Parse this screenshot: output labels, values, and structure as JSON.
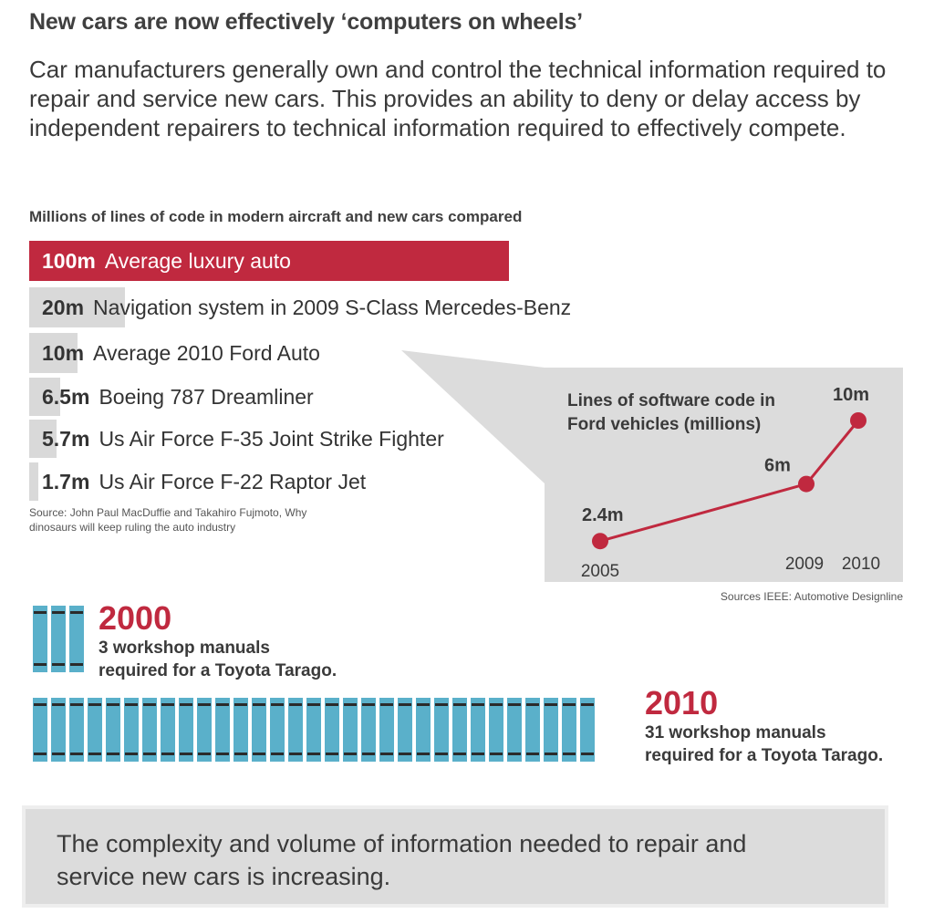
{
  "headline": "New cars are now effectively ‘computers on wheels’",
  "intro": "Car manufacturers generally own and control the technical information required to repair and service new cars. This provides an ability to deny or delay access by independent repairers to technical information required to effectively compete.",
  "chart_data": [
    {
      "type": "bar",
      "orientation": "horizontal",
      "title": "Millions of lines of code in modern aircraft and new cars compared",
      "categories": [
        "Average luxury auto",
        "Navigation system in 2009 S-Class Mercedes-Benz",
        "Average 2010 Ford Auto",
        "Boeing 787 Dreamliner",
        "Us Air Force F-35 Joint Strike Fighter",
        "Us Air Force F-22 Raptor Jet"
      ],
      "values": [
        100,
        20,
        10,
        6.5,
        5.7,
        1.7
      ],
      "value_labels": [
        "100m",
        "20m",
        "10m",
        "6.5m",
        "5.7m",
        "1.7m"
      ],
      "highlight_index": 0,
      "xlim": [
        0,
        100
      ],
      "source": "Source: John Paul MacDuffie and Takahiro Fujmoto, Why dinosaurs will keep ruling the auto industry"
    },
    {
      "type": "line",
      "title": "Lines of software code in Ford vehicles (millions)",
      "x": [
        2005,
        2009,
        2010
      ],
      "x_labels": [
        "2005",
        "2009",
        "2010"
      ],
      "values": [
        2.4,
        6,
        10
      ],
      "value_labels": [
        "2.4m",
        "6m",
        "10m"
      ],
      "ylim": [
        0,
        10
      ],
      "source": "Sources IEEE: Automotive Designline"
    }
  ],
  "manuals": {
    "first": {
      "year": "2000",
      "count": 3,
      "line1": "3 workshop manuals",
      "line2": "required for a Toyota Tarago."
    },
    "second": {
      "year": "2010",
      "count": 31,
      "line1": "31 workshop manuals",
      "line2": "required for a Toyota Tarago."
    }
  },
  "conclusion": "The complexity and volume of information needed to repair and service new cars is increasing.",
  "colors": {
    "accent": "#c0293f",
    "bar_grey": "#d9d9d9",
    "manual_blue": "#5ab0ca",
    "panel_grey": "#dcdcdc"
  }
}
